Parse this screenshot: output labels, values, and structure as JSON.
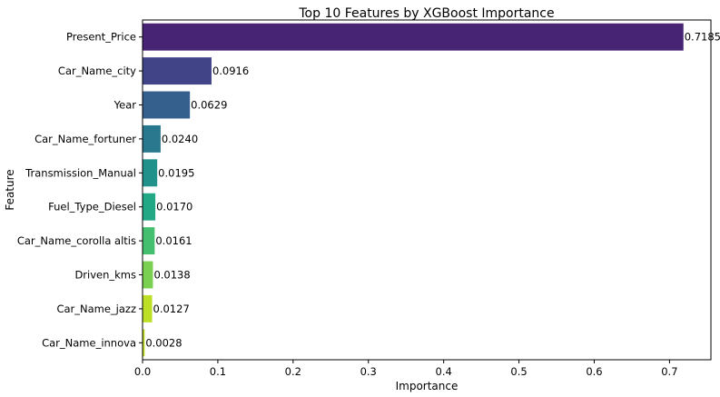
{
  "chart_data": {
    "type": "bar",
    "orientation": "horizontal",
    "title": "Top 10 Features by XGBoost Importance",
    "xlabel": "Importance",
    "ylabel": "Feature",
    "xlim": [
      0,
      0.755
    ],
    "xticks": [
      0,
      0.1,
      0.2,
      0.3,
      0.4,
      0.5,
      0.6,
      0.7
    ],
    "xtick_labels": [
      "0.0",
      "0.1",
      "0.2",
      "0.3",
      "0.4",
      "0.5",
      "0.6",
      "0.7"
    ],
    "grid": false,
    "legend": "none",
    "categories": [
      "Present_Price",
      "Car_Name_city",
      "Year",
      "Car_Name_fortuner",
      "Transmission_Manual",
      "Fuel_Type_Diesel",
      "Car_Name_corolla altis",
      "Driven_kms",
      "Car_Name_jazz",
      "Car_Name_innova"
    ],
    "values": [
      0.7185,
      0.0916,
      0.0629,
      0.024,
      0.0195,
      0.017,
      0.0161,
      0.0138,
      0.0127,
      0.0028
    ],
    "value_labels": [
      "0.7185",
      "0.0916",
      "0.0629",
      "0.0240",
      "0.0195",
      "0.0170",
      "0.0161",
      "0.0138",
      "0.0127",
      "0.0028"
    ],
    "colors": [
      "#482475",
      "#414487",
      "#355f8d",
      "#2a788e",
      "#21918c",
      "#22a884",
      "#44bf70",
      "#7ad151",
      "#bddf26",
      "#bddf26"
    ]
  }
}
